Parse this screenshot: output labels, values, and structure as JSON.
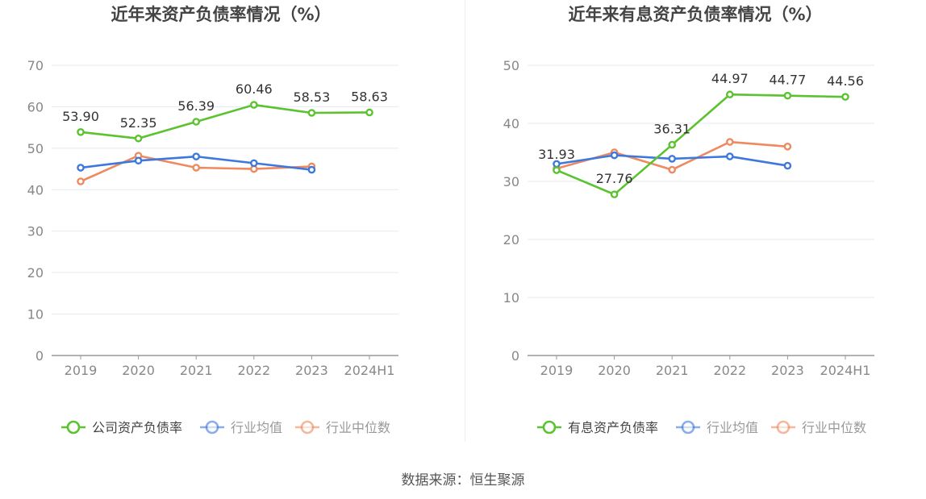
{
  "source": "数据来源：恒生聚源",
  "chart_data": [
    {
      "type": "line",
      "title": "近年来资产负债率情况（%）",
      "categories": [
        "2019",
        "2020",
        "2021",
        "2022",
        "2023",
        "2024H1"
      ],
      "ylim": [
        0,
        70
      ],
      "yticks": [
        0,
        10,
        20,
        30,
        40,
        50,
        60,
        70
      ],
      "grid": true,
      "legend_position": "bottom",
      "series": [
        {
          "name": "公司资产负债率",
          "color": "#5bc230",
          "labeled": true,
          "values": [
            53.9,
            52.35,
            56.39,
            60.46,
            58.53,
            58.63
          ],
          "labels": [
            "53.90",
            "52.35",
            "56.39",
            "60.46",
            "58.53",
            "58.63"
          ]
        },
        {
          "name": "行业均值",
          "color": "#3f78dc",
          "labeled": false,
          "values": [
            45.3,
            47.0,
            48.0,
            46.4,
            44.8,
            null
          ]
        },
        {
          "name": "行业中位数",
          "color": "#ee8a5f",
          "labeled": false,
          "values": [
            42.0,
            48.2,
            45.3,
            45.0,
            45.6,
            null
          ]
        }
      ]
    },
    {
      "type": "line",
      "title": "近年来有息资产负债率情况（%）",
      "categories": [
        "2019",
        "2020",
        "2021",
        "2022",
        "2023",
        "2024H1"
      ],
      "ylim": [
        0,
        50
      ],
      "yticks": [
        0,
        10,
        20,
        30,
        40,
        50
      ],
      "grid": true,
      "legend_position": "bottom",
      "series": [
        {
          "name": "有息资产负债率",
          "color": "#5bc230",
          "labeled": true,
          "values": [
            31.93,
            27.76,
            36.31,
            44.97,
            44.77,
            44.56
          ],
          "labels": [
            "31.93",
            "27.76",
            "36.31",
            "44.97",
            "44.77",
            "44.56"
          ]
        },
        {
          "name": "行业均值",
          "color": "#3f78dc",
          "labeled": false,
          "values": [
            33.0,
            34.5,
            33.9,
            34.3,
            32.7,
            null
          ]
        },
        {
          "name": "行业中位数",
          "color": "#ee8a5f",
          "labeled": false,
          "values": [
            32.2,
            35.0,
            32.0,
            36.8,
            36.0,
            null
          ]
        }
      ]
    }
  ]
}
